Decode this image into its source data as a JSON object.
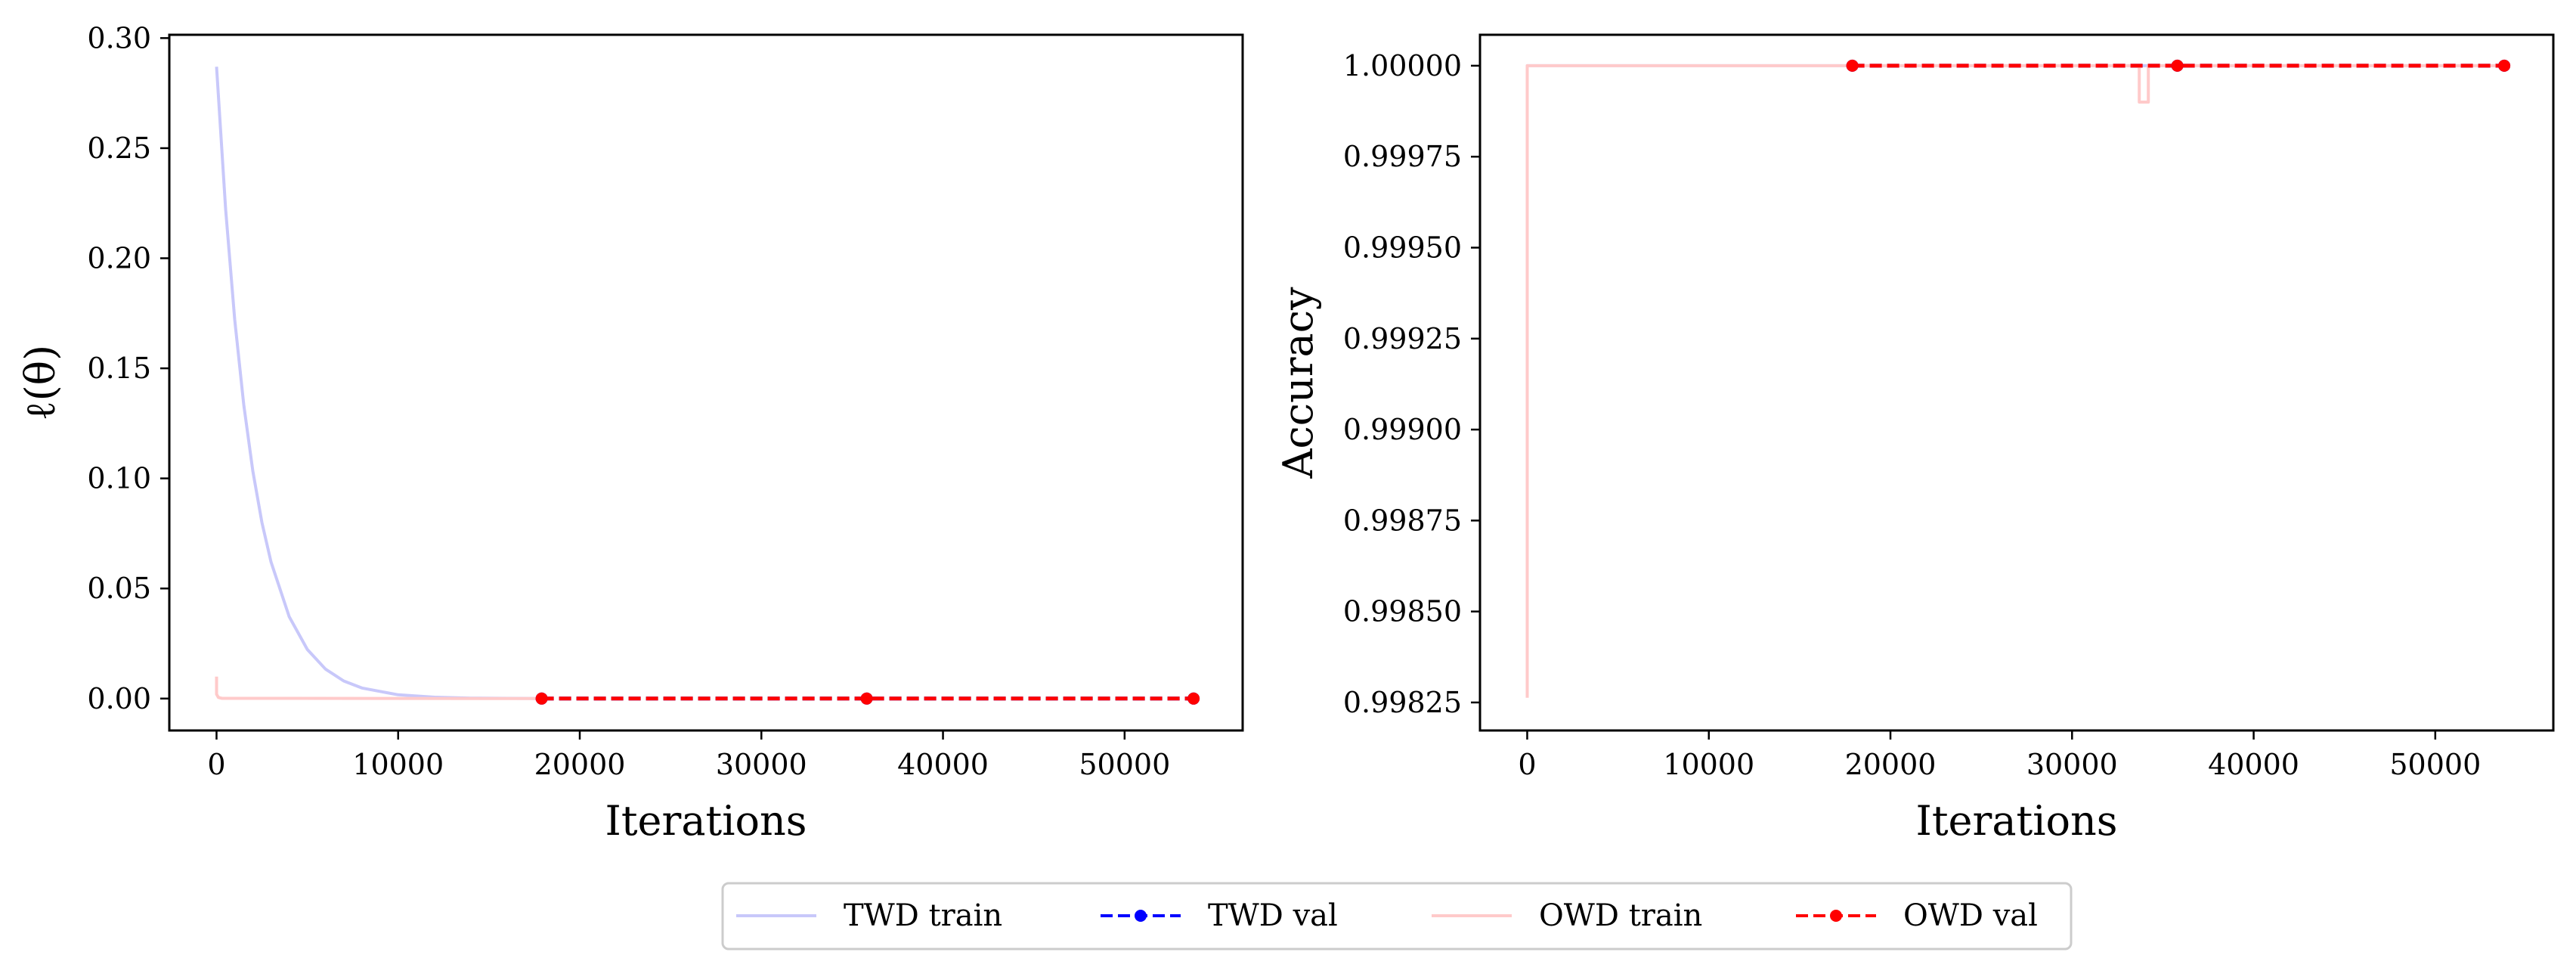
{
  "colors": {
    "twd_train": "#c8c8fa",
    "twd_val": "#0000ff",
    "owd_train": "#ffcaca",
    "owd_val": "#ff0000",
    "frame": "#000000"
  },
  "legend": {
    "twd_train": "TWD train",
    "twd_val": "TWD val",
    "owd_train": "OWD train",
    "owd_val": "OWD val",
    "placement": "bottom-center"
  },
  "chart_data": [
    {
      "type": "line",
      "title": "",
      "xlabel": "Iterations",
      "ylabel": "ℓ(θ)",
      "xlim": [
        -2600,
        56500
      ],
      "ylim": [
        -0.0145,
        0.3015
      ],
      "xticks": [
        0,
        10000,
        20000,
        30000,
        40000,
        50000
      ],
      "xtick_labels": [
        "0",
        "10000",
        "20000",
        "30000",
        "40000",
        "50000"
      ],
      "yticks": [
        0.0,
        0.05,
        0.1,
        0.15,
        0.2,
        0.25,
        0.3
      ],
      "ytick_labels": [
        "0.00",
        "0.05",
        "0.10",
        "0.15",
        "0.20",
        "0.25",
        "0.30"
      ],
      "grid": false,
      "series": [
        {
          "name": "TWD train",
          "style": "line",
          "color_key": "twd_train",
          "x": [
            0,
            500,
            1000,
            1500,
            2000,
            2500,
            3000,
            4000,
            5000,
            6000,
            7000,
            8000,
            10000,
            12000,
            14000,
            16000,
            18000
          ],
          "y": [
            0.287,
            0.2223,
            0.1722,
            0.1334,
            0.1033,
            0.08,
            0.062,
            0.0372,
            0.0223,
            0.0134,
            0.008,
            0.0048,
            0.0017,
            0.0006,
            0.0002,
            0.0001,
            0.0
          ]
        },
        {
          "name": "TWD val",
          "style": "dashed-markers",
          "color_key": "twd_val",
          "x": [
            17900,
            35800,
            53800
          ],
          "y": [
            0.0,
            0.0,
            0.0
          ]
        },
        {
          "name": "OWD train",
          "style": "line",
          "color_key": "owd_train",
          "x": [
            0,
            0,
            100,
            300,
            18000
          ],
          "y": [
            0.01,
            0.002,
            0.0005,
            0.0001,
            0.0
          ]
        },
        {
          "name": "OWD val",
          "style": "dashed-markers",
          "color_key": "owd_val",
          "x": [
            17900,
            35800,
            53800
          ],
          "y": [
            0.0,
            0.0,
            0.0
          ]
        }
      ]
    },
    {
      "type": "line",
      "title": "",
      "xlabel": "Iterations",
      "ylabel": "Accuracy",
      "xlim": [
        -2600,
        56500
      ],
      "ylim": [
        0.998173,
        1.000085
      ],
      "xticks": [
        0,
        10000,
        20000,
        30000,
        40000,
        50000
      ],
      "xtick_labels": [
        "0",
        "10000",
        "20000",
        "30000",
        "40000",
        "50000"
      ],
      "yticks": [
        0.99825,
        0.9985,
        0.99875,
        0.999,
        0.99925,
        0.9995,
        0.99975,
        1.0
      ],
      "ytick_labels": [
        "0.99825",
        "0.99850",
        "0.99875",
        "0.99900",
        "0.99925",
        "0.99950",
        "0.99975",
        "1.00000"
      ],
      "grid": false,
      "series": [
        {
          "name": "TWD train",
          "style": "line",
          "color_key": "twd_train",
          "x": [
            0,
            0,
            54000
          ],
          "y": [
            0.998666,
            1.0,
            1.0
          ]
        },
        {
          "name": "TWD val",
          "style": "dashed-markers",
          "color_key": "twd_val",
          "x": [
            17900,
            35800,
            53800
          ],
          "y": [
            1.0,
            1.0,
            1.0
          ]
        },
        {
          "name": "OWD train",
          "style": "line",
          "color_key": "owd_train",
          "x": [
            0,
            0,
            0,
            0,
            33700,
            33700,
            34200,
            34200,
            54000
          ],
          "y": [
            0.998263,
            0.998666,
            0.998666,
            1.0,
            1.0,
            0.9999,
            0.9999,
            1.0,
            1.0
          ]
        },
        {
          "name": "OWD val",
          "style": "dashed-markers",
          "color_key": "owd_val",
          "x": [
            17900,
            35800,
            53800
          ],
          "y": [
            1.0,
            1.0,
            1.0
          ]
        }
      ]
    }
  ]
}
